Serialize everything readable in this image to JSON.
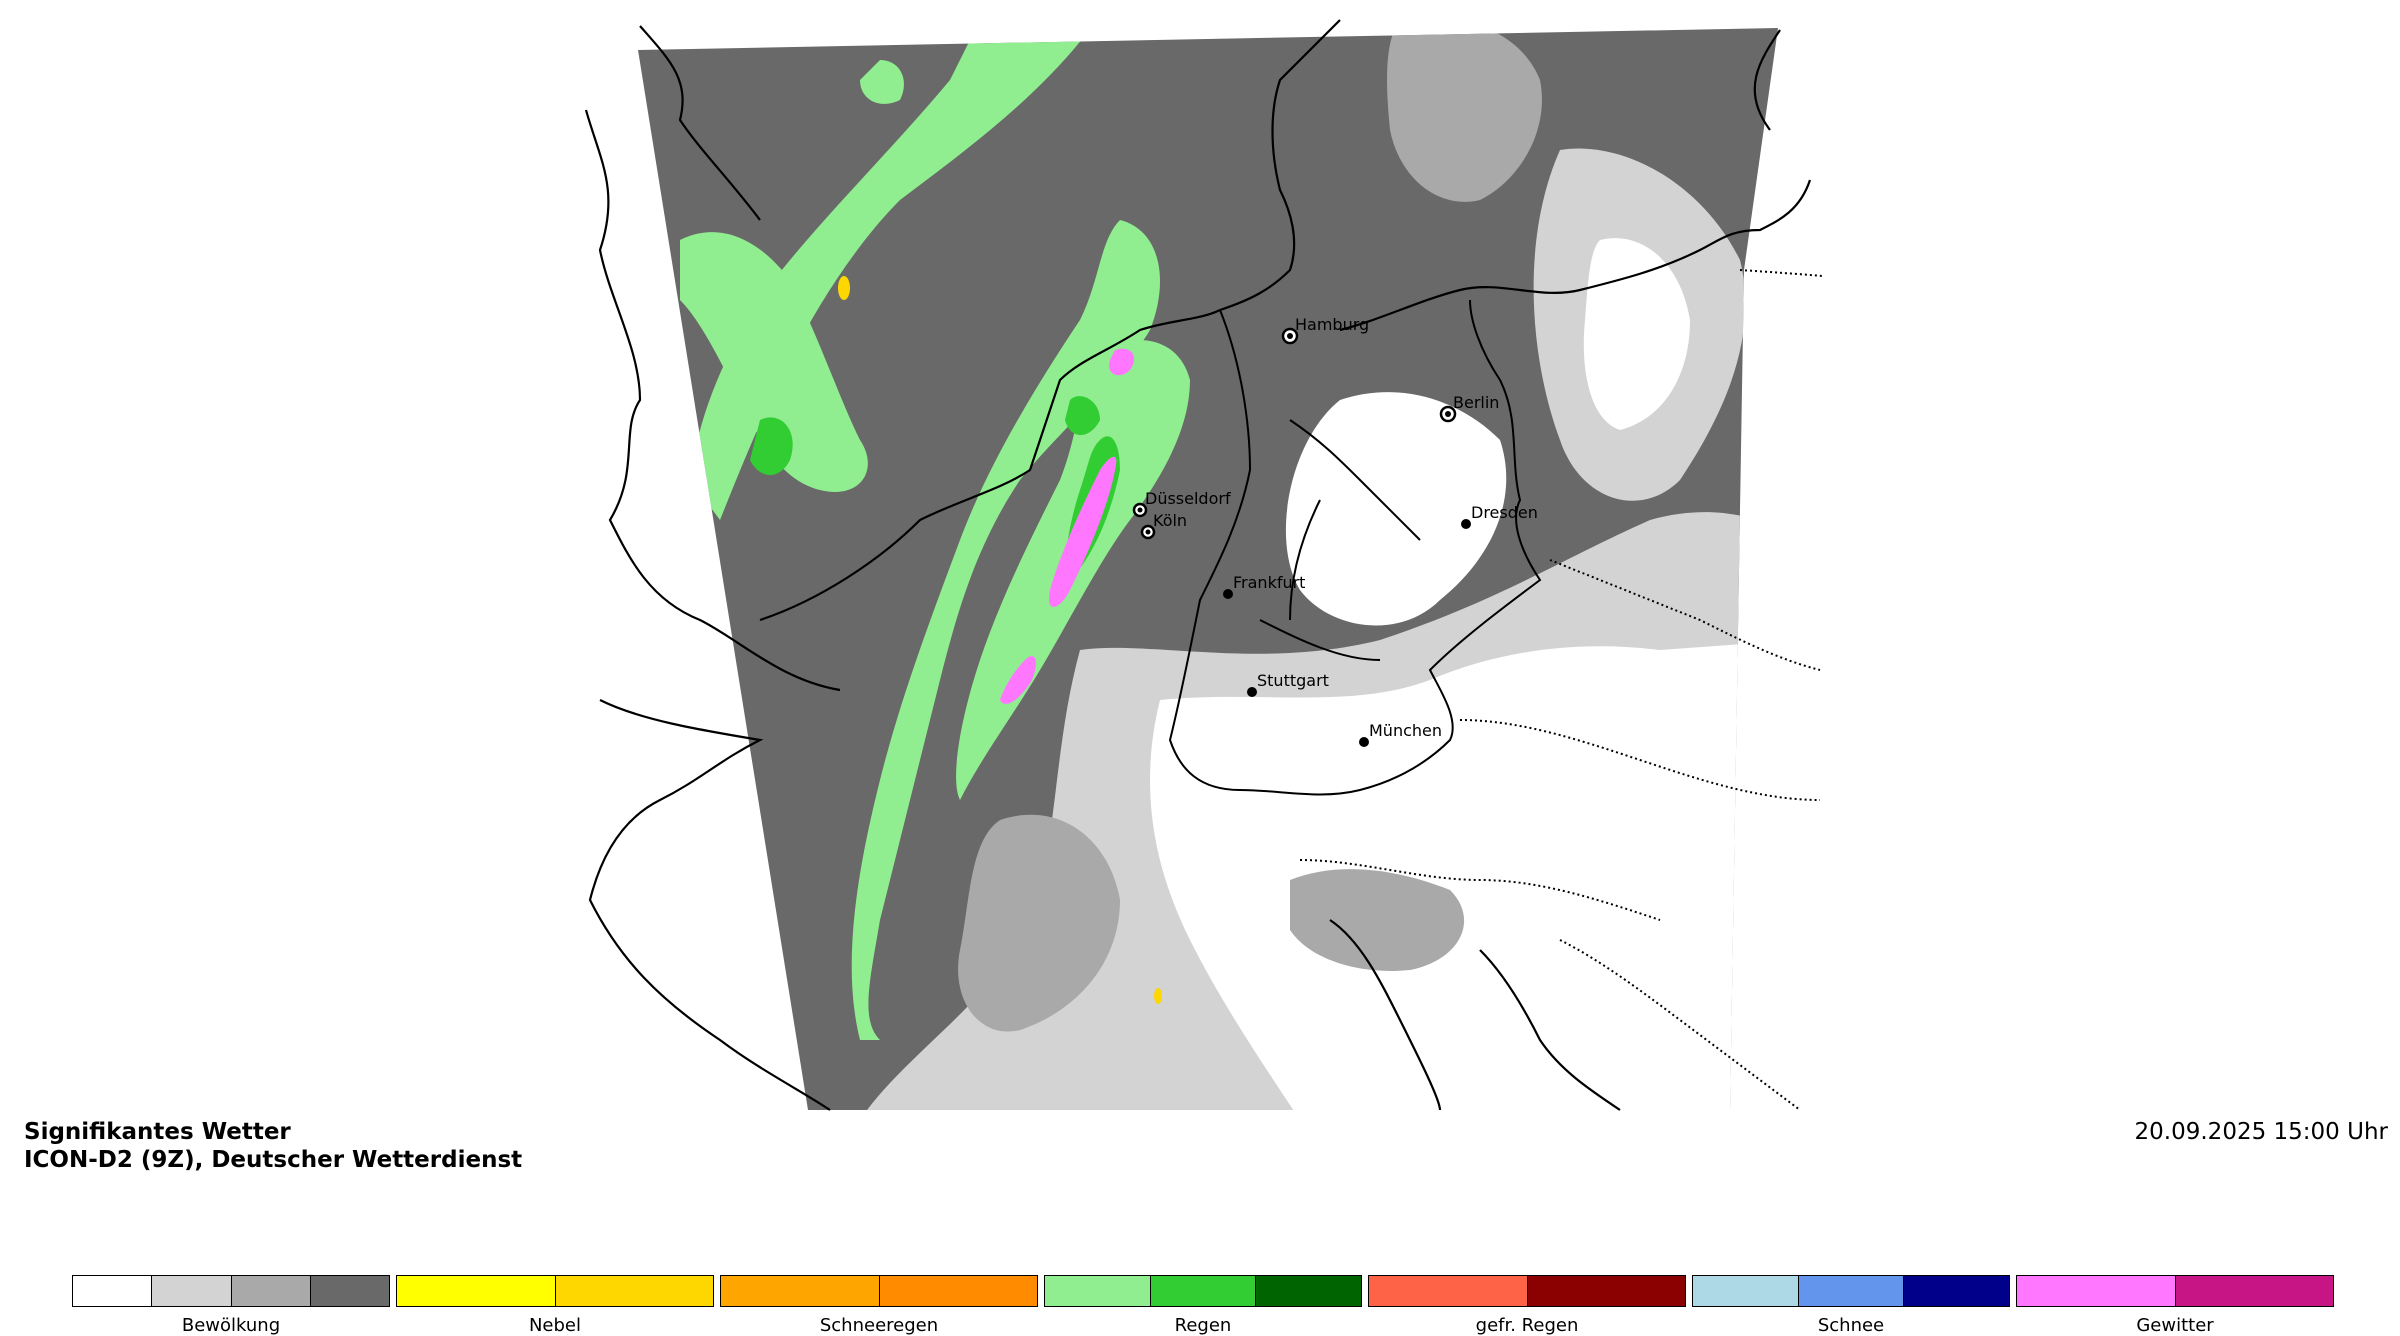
{
  "header": {
    "title": "Signifikantes Wetter",
    "subtitle": "ICON-D2 (9Z), Deutscher Wetterdienst",
    "timestamp": "20.09.2025 15:00 Uhr"
  },
  "cities": [
    {
      "name": "Hamburg"
    },
    {
      "name": "Berlin"
    },
    {
      "name": "Düsseldorf"
    },
    {
      "name": "Köln"
    },
    {
      "name": "Dresden"
    },
    {
      "name": "Frankfurt"
    },
    {
      "name": "Stuttgart"
    },
    {
      "name": "München"
    }
  ],
  "legend": [
    {
      "label": "Bewölkung",
      "colors": [
        "#ffffff",
        "#d3d3d3",
        "#a9a9a9",
        "#696969"
      ]
    },
    {
      "label": "Nebel",
      "colors": [
        "#ffff00",
        "#ffd700"
      ]
    },
    {
      "label": "Schneeregen",
      "colors": [
        "#ffa500",
        "#ff8c00"
      ]
    },
    {
      "label": "Regen",
      "colors": [
        "#90ee90",
        "#32cd32",
        "#006400"
      ]
    },
    {
      "label": "gefr. Regen",
      "colors": [
        "#ff6347",
        "#8b0000"
      ]
    },
    {
      "label": "Schnee",
      "colors": [
        "#add8e6",
        "#6495ed",
        "#00008b"
      ]
    },
    {
      "label": "Gewitter",
      "colors": [
        "#ff77ff",
        "#c71585"
      ]
    }
  ],
  "colors": {
    "cloud_dark": "#696969",
    "cloud_mid": "#a9a9a9",
    "cloud_light": "#d3d3d3",
    "rain_light": "#90ee90",
    "rain_mid": "#32cd32",
    "thunder": "#ff77ff",
    "fog": "#ffd700"
  }
}
